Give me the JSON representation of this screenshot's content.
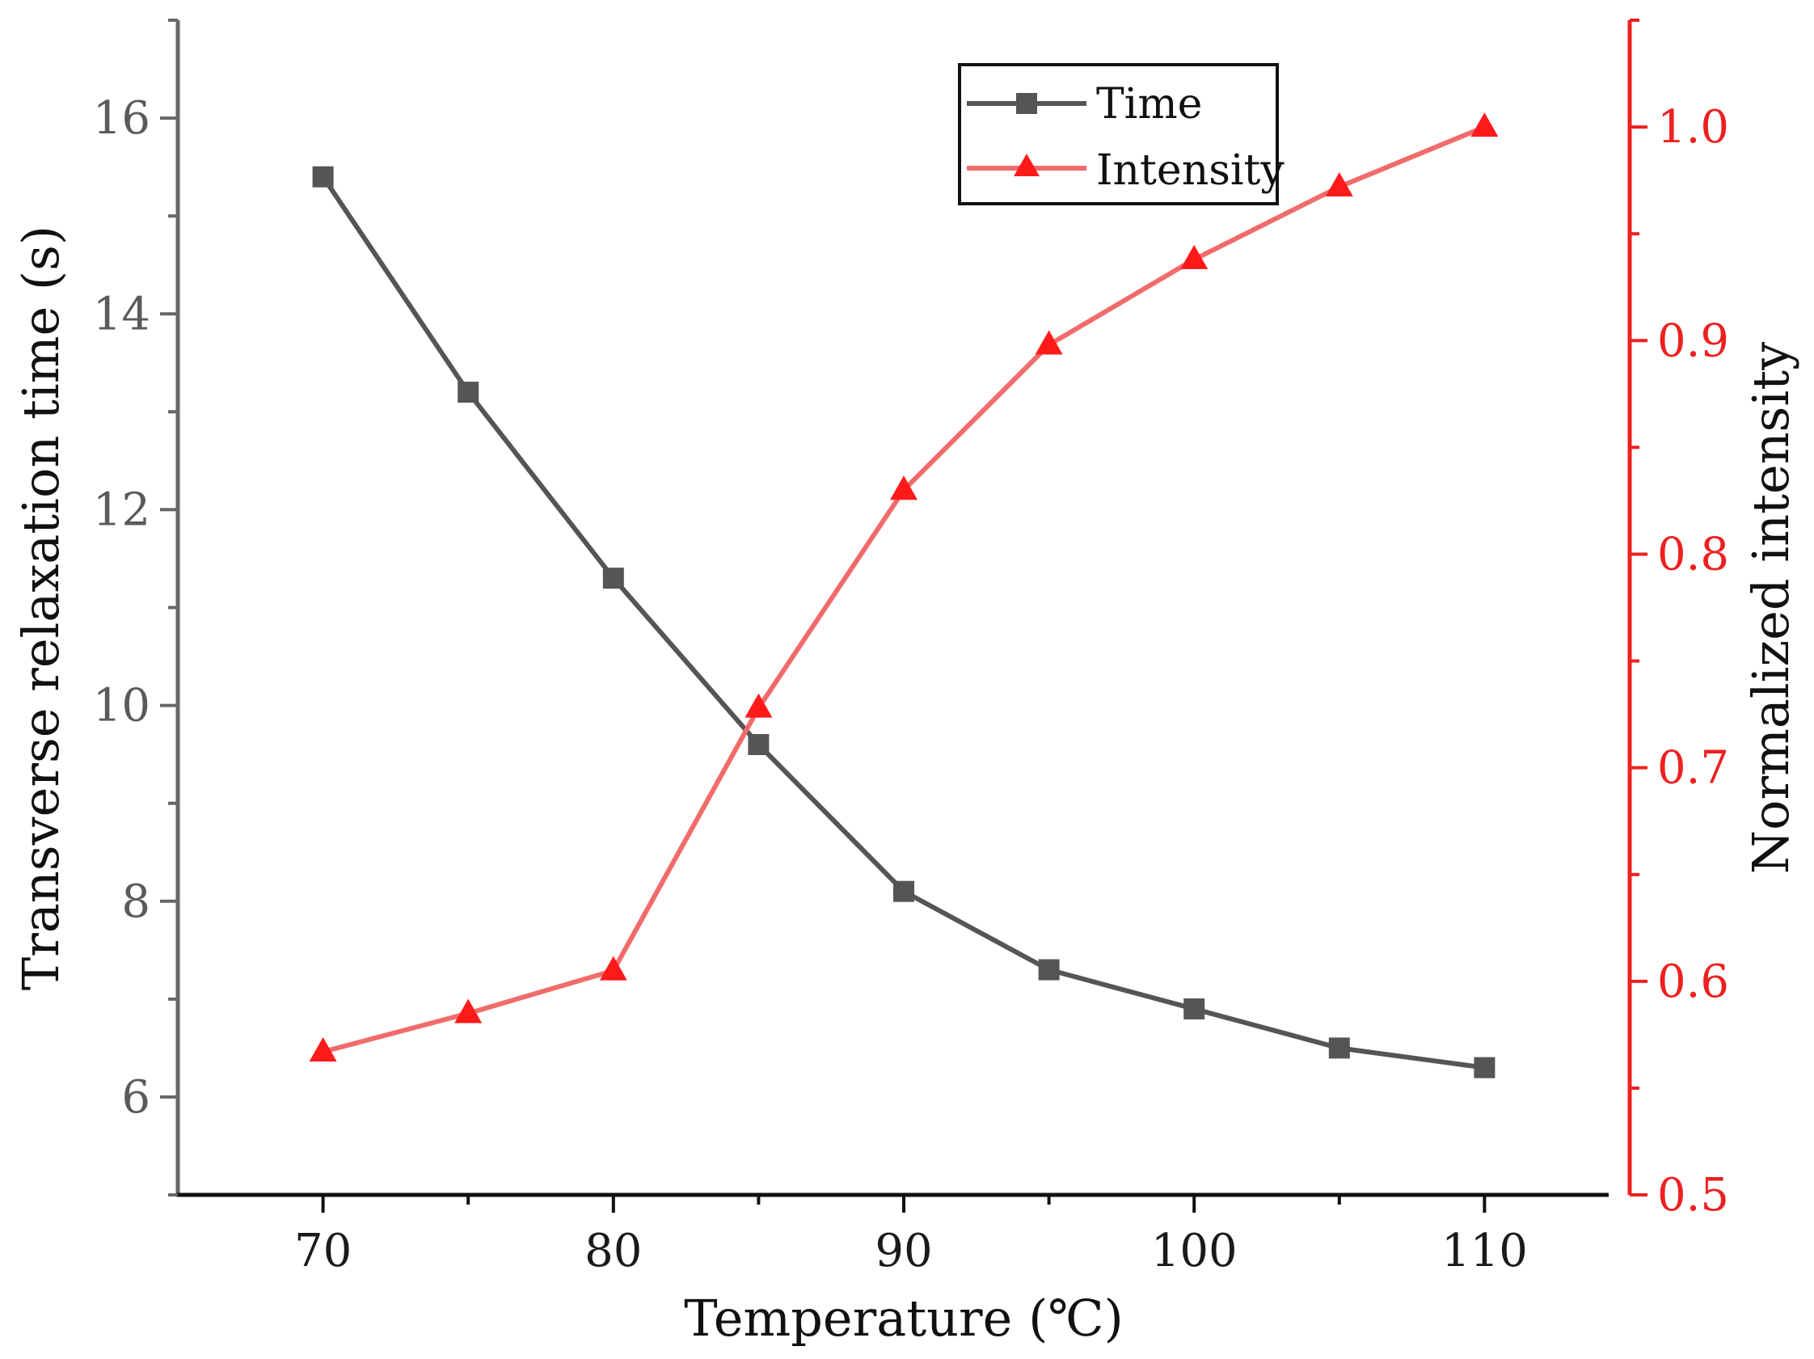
{
  "chart_data": {
    "type": "line",
    "xlabel": "Temperature (℃)",
    "ylabel_left": "Transverse relaxation time (s)",
    "ylabel_right": "Normalized intensity",
    "xlim": [
      65,
      115
    ],
    "ylim_left": [
      5,
      17
    ],
    "ylim_right": [
      0.5,
      1.05
    ],
    "x_ticks": [
      "70",
      "80",
      "90",
      "100",
      "110"
    ],
    "y_left_ticks": [
      "6",
      "8",
      "10",
      "12",
      "14",
      "16"
    ],
    "y_right_ticks": [
      "0.5",
      "0.6",
      "0.7",
      "0.8",
      "0.9",
      "1.0"
    ],
    "legend_position": "top-right",
    "x": [
      70,
      75,
      80,
      85,
      90,
      95,
      100,
      105,
      110
    ],
    "series": [
      {
        "name": "Time",
        "axis": "left",
        "marker": "square",
        "color": "#555555",
        "values": [
          15.4,
          13.2,
          11.3,
          9.6,
          8.1,
          7.3,
          6.9,
          6.5,
          6.3
        ]
      },
      {
        "name": "Intensity",
        "axis": "right",
        "marker": "triangle",
        "color": "#f26b6b",
        "marker_color": "#ff1a1a",
        "values": [
          0.567,
          0.585,
          0.605,
          0.728,
          0.83,
          0.898,
          0.938,
          0.972,
          1.0
        ]
      }
    ],
    "axis_colors": {
      "left": "#666666",
      "bottom": "#111111",
      "right": "#ee2020"
    }
  }
}
